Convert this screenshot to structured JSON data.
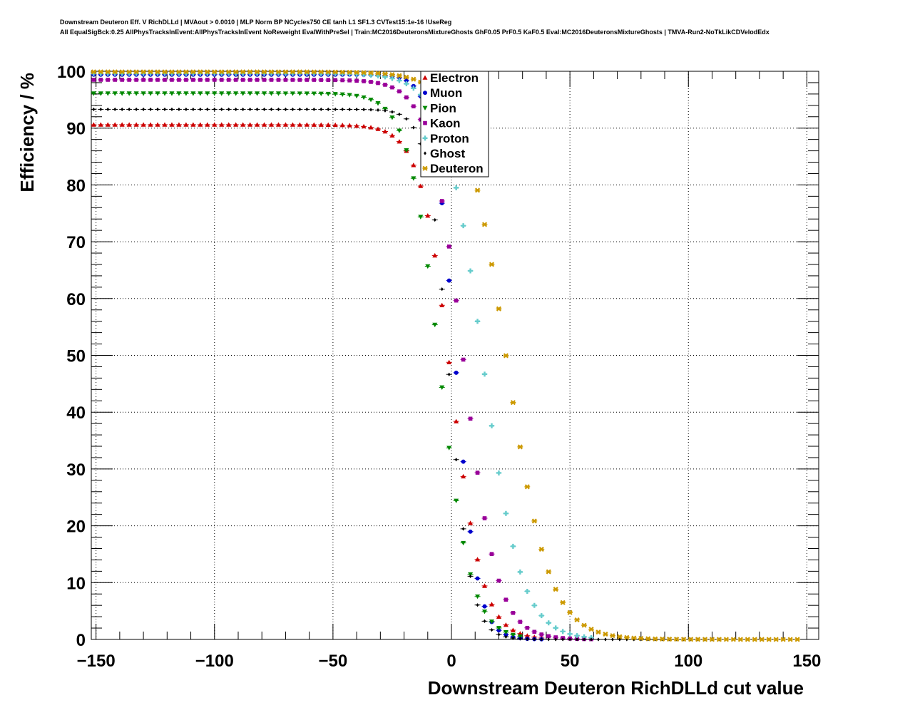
{
  "header": {
    "title_line1": "Downstream Deuteron Eff. V RichDLLd | MVAout > 0.0010 | MLP Norm BP NCycles750 CE tanh L1 SF1.3 CVTest15:1e-16 !UseReg",
    "title_line2": "All EqualSigBck:0.25 AllPhysTracksInEvent:AllPhysTracksInEvent NoReweight EvalWithPreSel | Train:MC2016DeuteronsMixtureGhosts GhF0.05 PrF0.5 KaF0.5 Eval:MC2016DeuteronsMixtureGhosts | TMVA-Run2-NoTkLikCDVelodEdx"
  },
  "chart_data": {
    "type": "scatter",
    "xlabel": "Downstream Deuteron RichDLLd cut value",
    "ylabel": "Efficiency / %",
    "xlim": [
      -152,
      155
    ],
    "ylim": [
      0,
      100
    ],
    "x_ticks": [
      -150,
      -100,
      -50,
      0,
      50,
      100,
      150
    ],
    "x_tick_labels": [
      "−150",
      "−100",
      "−50",
      "0",
      "50",
      "100",
      "150"
    ],
    "y_ticks": [
      0,
      10,
      20,
      30,
      40,
      50,
      60,
      70,
      80,
      90,
      100
    ],
    "y_tick_labels": [
      "0",
      "10",
      "20",
      "30",
      "40",
      "50",
      "60",
      "70",
      "80",
      "90",
      "100"
    ],
    "grid": true,
    "legend_position": "top-center",
    "series": [
      {
        "name": "Electron",
        "color": "#cc0000",
        "marker": "triangle-up",
        "plateau": 90.6,
        "mid": 0,
        "width": 6.5,
        "xmax": 40
      },
      {
        "name": "Muon",
        "color": "#0000cc",
        "marker": "circle",
        "plateau": 99.4,
        "mid": 1.5,
        "width": 4.5,
        "xmax": 40
      },
      {
        "name": "Pion",
        "color": "#008800",
        "marker": "triangle-down",
        "plateau": 96.1,
        "mid": -5,
        "width": 6.5,
        "xmax": 30
      },
      {
        "name": "Kaon",
        "color": "#990099",
        "marker": "square",
        "plateau": 98.5,
        "mid": 5,
        "width": 7,
        "xmax": 60
      },
      {
        "name": "Proton",
        "color": "#66cccc",
        "marker": "cross",
        "plateau": 99.6,
        "mid": 13,
        "width": 8,
        "xmax": 60
      },
      {
        "name": "Ghost",
        "color": "#000000",
        "marker": "diamond",
        "plateau": 93.3,
        "mid": -1,
        "width": 4.5,
        "xmax": 115
      },
      {
        "name": "Deuteron",
        "color": "#cc9900",
        "marker": "star",
        "plateau": 99.9,
        "mid": 23,
        "width": 9,
        "xmax": 148
      }
    ]
  }
}
